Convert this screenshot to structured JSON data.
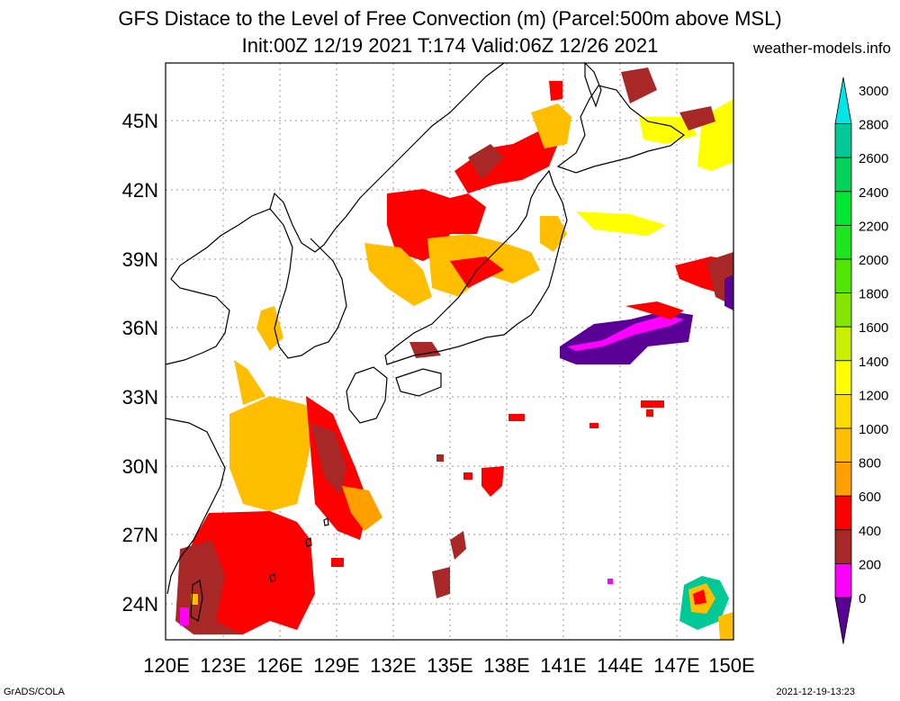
{
  "header": {
    "title_line1": "GFS Distace to the Level of Free Convection (m) (Parcel:500m above MSL)",
    "title_line2": "Init:00Z 12/19 2021 T:174 Valid:06Z 12/26 2021",
    "site": "weather-models.info"
  },
  "footer": {
    "left": "GrADS/COLA",
    "right": "2021-12-19-13:23"
  },
  "map": {
    "lon_labels": [
      "120E",
      "123E",
      "126E",
      "129E",
      "132E",
      "135E",
      "138E",
      "141E",
      "144E",
      "147E",
      "150E"
    ],
    "lat_labels": [
      "45N",
      "42N",
      "39N",
      "36N",
      "33N",
      "30N",
      "27N",
      "24N"
    ]
  },
  "colorbar": {
    "labels": [
      "3000",
      "2800",
      "2600",
      "2400",
      "2200",
      "2000",
      "1800",
      "1600",
      "1400",
      "1200",
      "1000",
      "800",
      "600",
      "400",
      "200",
      "0"
    ],
    "colors": [
      "#00e6e6",
      "#00c896",
      "#00d25a",
      "#00e632",
      "#1ee61e",
      "#50e600",
      "#82e600",
      "#c8f000",
      "#ffff00",
      "#ffdc00",
      "#ffbe00",
      "#ffa000",
      "#ff0000",
      "#a82828",
      "#ff00ff",
      "#5a0096"
    ]
  }
}
